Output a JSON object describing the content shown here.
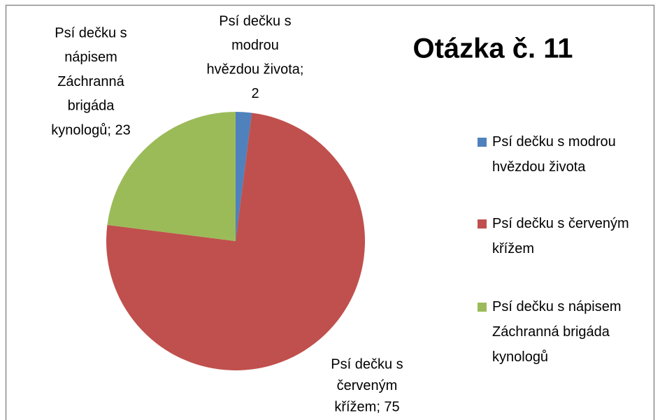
{
  "chart_data": {
    "type": "pie",
    "title": "Otázka č. 11",
    "categories": [
      "Psí dečku s modrou hvězdou života",
      "Psí dečku s červeným křížem",
      "Psí dečku s nápisem Záchranná brigáda kynologů"
    ],
    "values": [
      2,
      75,
      23
    ],
    "value_labels": [
      [
        "Psí dečku s",
        "modrou",
        "hvězdou života;",
        "2"
      ],
      [
        "Psí dečku s",
        "červeným",
        "křížem; 75"
      ],
      [
        "Psí dečku s",
        "nápisem",
        "Záchranná",
        "brigáda",
        "kynologů; 23"
      ]
    ],
    "colors": [
      "#4f81bd",
      "#c0504d",
      "#9bbb59"
    ],
    "legend": "right"
  }
}
